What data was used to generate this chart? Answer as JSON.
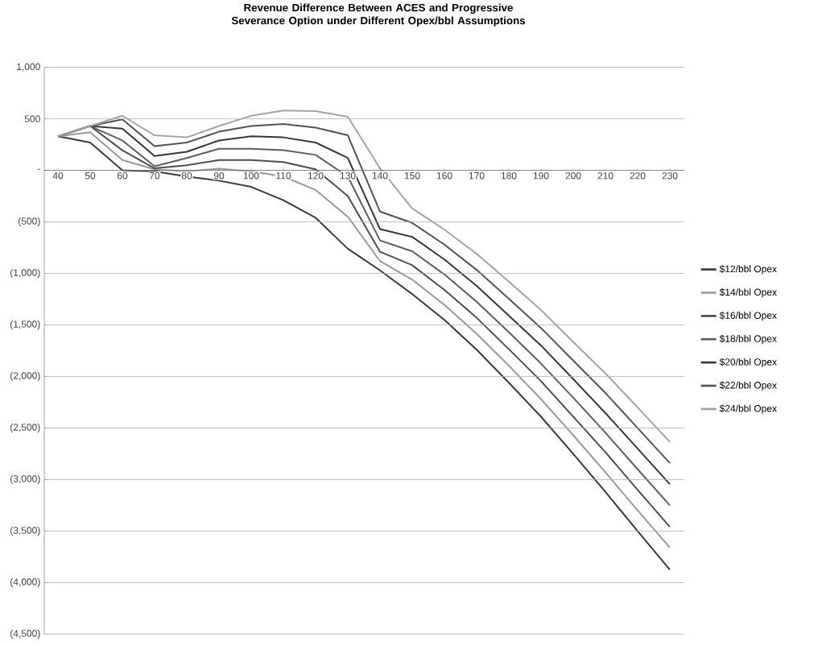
{
  "chart_data": {
    "type": "line",
    "title": "Revenue Difference Between ACES and Progressive Severance Option under Different Opex/bbl Assumptions",
    "categories": [
      "40",
      "50",
      "60",
      "70",
      "80",
      "90",
      "100",
      "110",
      "120",
      "130",
      "140",
      "150",
      "160",
      "170",
      "180",
      "190",
      "200",
      "210",
      "220",
      "230"
    ],
    "series": [
      {
        "name": "$12/bbl Opex",
        "color": "#3a3a3a",
        "values": [
          330,
          270,
          0,
          -10,
          -60,
          -100,
          -160,
          -290,
          -460,
          -760,
          -970,
          -1200,
          -1450,
          -1740,
          -2060,
          -2390,
          -2750,
          -3120,
          -3500,
          -3875
        ]
      },
      {
        "name": "$14/bbl Opex",
        "color": "#9a9a9a",
        "values": [
          330,
          370,
          100,
          10,
          -10,
          16,
          -10,
          -60,
          -190,
          -450,
          -880,
          -1060,
          -1305,
          -1585,
          -1895,
          -2220,
          -2570,
          -2930,
          -3300,
          -3660
        ]
      },
      {
        "name": "$16/bbl Opex",
        "color": "#4e4e4e",
        "values": [
          330,
          430,
          195,
          20,
          50,
          100,
          100,
          80,
          10,
          -250,
          -790,
          -920,
          -1160,
          -1430,
          -1735,
          -2045,
          -2390,
          -2735,
          -3100,
          -3460
        ]
      },
      {
        "name": "$18/bbl Opex",
        "color": "#5e5e5e",
        "values": [
          330,
          430,
          290,
          40,
          120,
          210,
          210,
          195,
          150,
          -60,
          -680,
          -785,
          -1010,
          -1275,
          -1570,
          -1875,
          -2205,
          -2545,
          -2900,
          -3250
        ]
      },
      {
        "name": "$20/bbl Opex",
        "color": "#383838",
        "values": [
          330,
          430,
          405,
          140,
          180,
          290,
          330,
          320,
          270,
          120,
          -570,
          -645,
          -865,
          -1120,
          -1410,
          -1700,
          -2025,
          -2355,
          -2700,
          -3045
        ]
      },
      {
        "name": "$22/bbl Opex",
        "color": "#545454",
        "values": [
          330,
          430,
          495,
          235,
          270,
          375,
          430,
          450,
          415,
          340,
          -400,
          -510,
          -720,
          -965,
          -1245,
          -1530,
          -1845,
          -2160,
          -2500,
          -2840
        ]
      },
      {
        "name": "$24/bbl Opex",
        "color": "#a5a5a5",
        "values": [
          330,
          430,
          530,
          340,
          320,
          430,
          530,
          580,
          575,
          520,
          20,
          -370,
          -575,
          -810,
          -1080,
          -1355,
          -1665,
          -1970,
          -2300,
          -2635
        ]
      }
    ],
    "ylim": [
      -4500,
      1000
    ],
    "yticks": [
      {
        "value": 1000,
        "label": "1,000"
      },
      {
        "value": 500,
        "label": "500"
      },
      {
        "value": 0,
        "label": "-"
      },
      {
        "value": -500,
        "label": "(500)"
      },
      {
        "value": -1000,
        "label": "(1,000)"
      },
      {
        "value": -1500,
        "label": "(1,500)"
      },
      {
        "value": -2000,
        "label": "(2,000)"
      },
      {
        "value": -2500,
        "label": "(2,500)"
      },
      {
        "value": -3000,
        "label": "(3,000)"
      },
      {
        "value": -3500,
        "label": "(3,500)"
      },
      {
        "value": -4000,
        "label": "(4,000)"
      },
      {
        "value": -4500,
        "label": "(4,500)"
      }
    ],
    "grid": "y",
    "legend": "right",
    "marker": "none",
    "line_style": "solid"
  }
}
